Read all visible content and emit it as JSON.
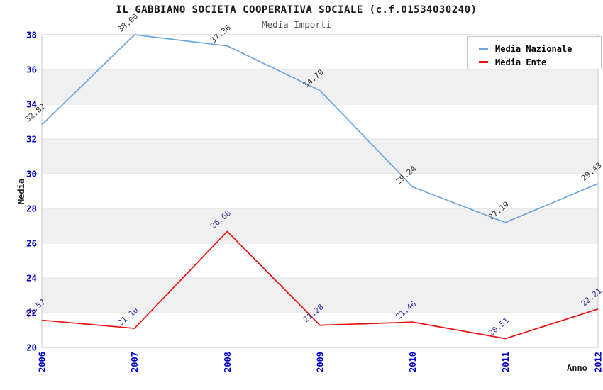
{
  "header": {
    "title": "IL GABBIANO SOCIETA COOPERATIVA SOCIALE (c.f.01534030240)",
    "subtitle": "Media Importi"
  },
  "chart_data": {
    "type": "line",
    "x": [
      "2006",
      "2007",
      "2008",
      "2009",
      "2010",
      "2011",
      "2012"
    ],
    "xlabel": "Anno",
    "ylabel": "Media",
    "ylim": [
      20,
      38
    ],
    "ytick_step": 2,
    "grid": "horizontal gridlines at each 2-unit tick",
    "plot_background_bands": {
      "white": [
        "20-22",
        "24-26",
        "28-30",
        "32-34",
        "36-38"
      ],
      "gray": [
        "22-24",
        "26-28",
        "30-32",
        "34-36"
      ]
    },
    "band_colors": [
      "#ffffff",
      "#f0f0f0"
    ],
    "gridline_color": "#e3e3e3",
    "plot_border_color": "#c9c9c9",
    "axis_tick_color": "#0000cc",
    "legend_position": "top-right",
    "series": [
      {
        "name": "Media Nazionale",
        "color": "#6ca6e0",
        "label_color": "#333333",
        "values": [
          32.82,
          38.0,
          37.36,
          34.79,
          29.24,
          27.19,
          29.43
        ],
        "value_labels": [
          "32.82",
          "38.00",
          "37.36",
          "34.79",
          "29.24",
          "27.19",
          "29.43"
        ]
      },
      {
        "name": "Media Ente",
        "color": "#ee1111",
        "label_color": "#303099",
        "values": [
          21.57,
          21.1,
          26.68,
          21.28,
          21.46,
          20.51,
          22.21
        ],
        "value_labels": [
          "21.57",
          "21.10",
          "26.68",
          "21.28",
          "21.46",
          "20.51",
          "22.21"
        ]
      }
    ]
  }
}
